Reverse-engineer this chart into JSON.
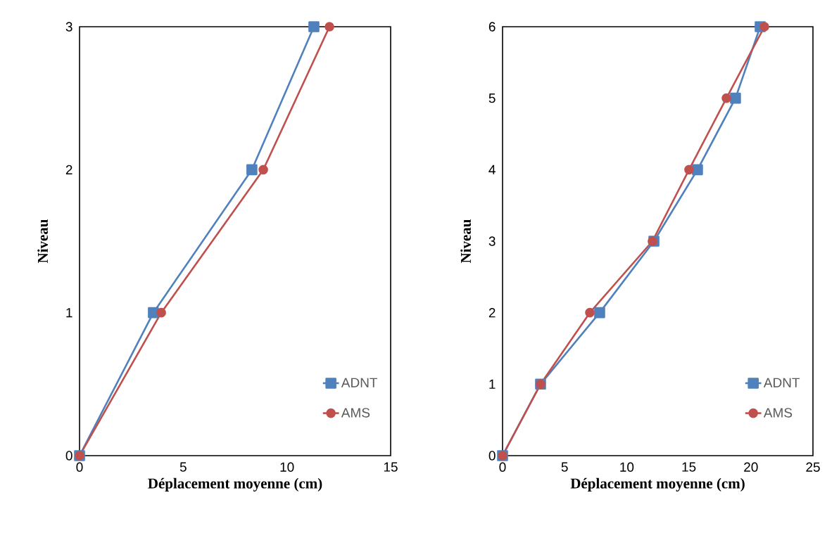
{
  "chart_data": [
    {
      "type": "line",
      "xlabel": "Déplacement moyenne (cm)",
      "ylabel": "Niveau",
      "xlim": [
        0,
        15
      ],
      "xticks": [
        0,
        5,
        10,
        15
      ],
      "ylim": [
        0,
        3
      ],
      "yticks": [
        0,
        1,
        2,
        3
      ],
      "legend": "bottom right",
      "line_style": "solid",
      "series": [
        {
          "name": "ADNT",
          "color": "#4f81bd",
          "marker": "square",
          "x": [
            0,
            3.56,
            8.31,
            11.3
          ],
          "values": [
            0,
            1,
            2,
            3
          ]
        },
        {
          "name": "AMS",
          "color": "#c0504d",
          "marker": "circle",
          "x": [
            0,
            3.94,
            8.86,
            12.05
          ],
          "values": [
            0,
            1,
            2,
            3
          ]
        }
      ]
    },
    {
      "type": "line",
      "xlabel": "Déplacement moyenne (cm)",
      "ylabel": "Niveau",
      "xlim": [
        0,
        25
      ],
      "xticks": [
        0,
        5,
        10,
        15,
        20,
        25
      ],
      "ylim": [
        0,
        6
      ],
      "yticks": [
        0,
        1,
        2,
        3,
        4,
        5,
        6
      ],
      "legend": "bottom right",
      "line_style": "solid",
      "series": [
        {
          "name": "ADNT",
          "color": "#4f81bd",
          "marker": "square",
          "x": [
            0,
            3.06,
            7.82,
            12.19,
            15.7,
            18.76,
            20.75
          ],
          "values": [
            0,
            1,
            2,
            3,
            4,
            5,
            6
          ]
        },
        {
          "name": "AMS",
          "color": "#c0504d",
          "marker": "circle",
          "x": [
            0,
            3.06,
            7.03,
            12.07,
            15.02,
            18.03,
            21.09
          ],
          "values": [
            0,
            1,
            2,
            3,
            4,
            5,
            6
          ]
        }
      ]
    }
  ]
}
